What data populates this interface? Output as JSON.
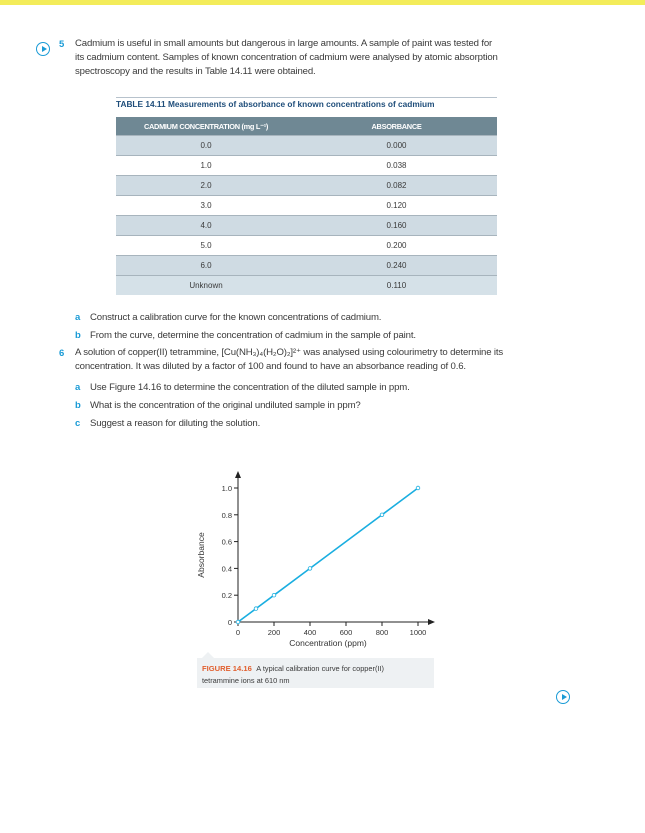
{
  "q5": {
    "number": "5",
    "lines": [
      "Cadmium is useful in small amounts but dangerous in large amounts. A sample of paint was tested for",
      "its cadmium content. Samples of known concentration of cadmium were analysed by atomic absorption",
      "spectroscopy and the results in Table 14.11 were obtained."
    ],
    "parts": [
      {
        "letter": "a",
        "text": "Construct a calibration curve for the known concentrations of cadmium."
      },
      {
        "letter": "b",
        "text": "From the curve, determine the concentration of cadmium in the sample of paint."
      }
    ]
  },
  "table": {
    "caption_label": "TABLE 14.11",
    "caption_text": "Measurements of absorbance of known concentrations of cadmium",
    "headers": [
      "CADMIUM CONCENTRATION (mg L⁻¹)",
      "ABSORBANCE"
    ],
    "rows": [
      [
        "0.0",
        "0.000"
      ],
      [
        "1.0",
        "0.038"
      ],
      [
        "2.0",
        "0.082"
      ],
      [
        "3.0",
        "0.120"
      ],
      [
        "4.0",
        "0.160"
      ],
      [
        "5.0",
        "0.200"
      ],
      [
        "6.0",
        "0.240"
      ],
      [
        "Unknown",
        "0.110"
      ]
    ]
  },
  "q6": {
    "number": "6",
    "lines": [
      "A solution of copper(II) tetrammine, [Cu(NH₃)₄(H₂O)₂]²⁺ was analysed using colourimetry to determine its",
      "concentration. It was diluted by a factor of 100 and found to have an absorbance reading of 0.6."
    ],
    "parts": [
      {
        "letter": "a",
        "text": "Use Figure 14.16 to determine the concentration of the diluted sample in ppm."
      },
      {
        "letter": "b",
        "text": "What is the concentration of the original undiluted sample in ppm?"
      },
      {
        "letter": "c",
        "text": "Suggest a reason for diluting the solution."
      }
    ]
  },
  "chart_data": {
    "type": "line",
    "x": [
      0,
      100,
      200,
      400,
      800,
      1000
    ],
    "y": [
      0,
      0.1,
      0.2,
      0.4,
      0.8,
      1.0
    ],
    "xlabel": "Concentration (ppm)",
    "ylabel": "Absorbance",
    "xticks": [
      "0",
      "200",
      "400",
      "600",
      "800",
      "1000"
    ],
    "yticks": [
      "0",
      "0.2",
      "0.4",
      "0.6",
      "0.8",
      "1.0"
    ],
    "xlim": [
      0,
      1000
    ],
    "ylim": [
      0,
      1.0
    ],
    "grid": false,
    "line_color": "#1aaee0"
  },
  "figure": {
    "label": "FIGURE 14.16",
    "caption_line1": "A typical calibration curve for copper(II)",
    "caption_line2": "tetrammine ions at 610 nm"
  },
  "icons": {
    "q5_icon": "play-circle-icon",
    "footer_icon": "play-circle-icon"
  }
}
